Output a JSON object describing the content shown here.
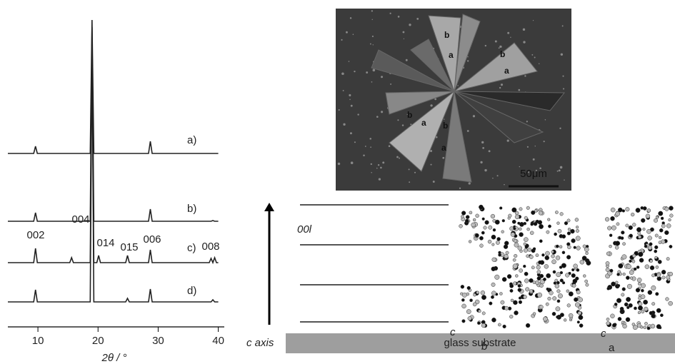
{
  "chart_data": {
    "type": "line",
    "x_label": "2θ / °",
    "xlim": [
      5,
      41
    ],
    "xticks": [
      10,
      20,
      30,
      40
    ],
    "ylim": [
      0,
      440
    ],
    "x": [
      5,
      9.3,
      9.6,
      9.9,
      15.3,
      15.6,
      15.9,
      18.7,
      19.0,
      19.3,
      19.8,
      20.1,
      20.4,
      24.6,
      24.9,
      25.2,
      28.4,
      28.7,
      29.0,
      38.5,
      38.8,
      39.1,
      39.4,
      39.7,
      40
    ],
    "series": [
      {
        "name": "a)",
        "color": "#222222",
        "values": [
          243,
          243,
          253,
          243,
          243,
          243,
          243,
          243,
          430,
          243,
          243,
          243,
          243,
          243,
          243,
          243,
          243,
          260,
          243,
          243,
          243,
          243,
          243,
          243,
          243
        ]
      },
      {
        "name": "b)",
        "color": "#222222",
        "values": [
          148,
          148,
          160,
          148,
          148,
          148,
          148,
          148,
          420,
          148,
          148,
          148,
          148,
          148,
          148,
          148,
          148,
          165,
          148,
          148,
          148,
          149,
          148,
          148,
          148
        ]
      },
      {
        "name": "c)",
        "color": "#222222",
        "values": [
          90,
          90,
          110,
          90,
          90,
          97,
          90,
          90,
          400,
          90,
          90,
          100,
          90,
          90,
          100,
          90,
          90,
          108,
          90,
          90,
          96,
          90,
          97,
          90,
          90
        ]
      },
      {
        "name": "d)",
        "color": "#222222",
        "values": [
          35,
          35,
          52,
          35,
          35,
          35,
          35,
          35,
          400,
          35,
          35,
          35,
          35,
          35,
          40,
          35,
          35,
          53,
          35,
          35,
          35,
          38,
          35,
          35,
          35
        ]
      }
    ],
    "annotations": [
      "002",
      "004",
      "014",
      "015",
      "006",
      "008"
    ]
  },
  "micrograph": {
    "axis_labels": [
      [
        "b",
        "a"
      ],
      [
        "b",
        "a"
      ],
      [
        "b",
        "a"
      ],
      [
        "b",
        "a"
      ]
    ],
    "scale_bar": "50μm"
  },
  "schematic": {
    "plane_label": "00l",
    "axis_label": "c axis",
    "substrate": "glass substrate",
    "view_1_axes": [
      "c",
      "b"
    ],
    "view_2_axes": [
      "c",
      "a"
    ]
  }
}
